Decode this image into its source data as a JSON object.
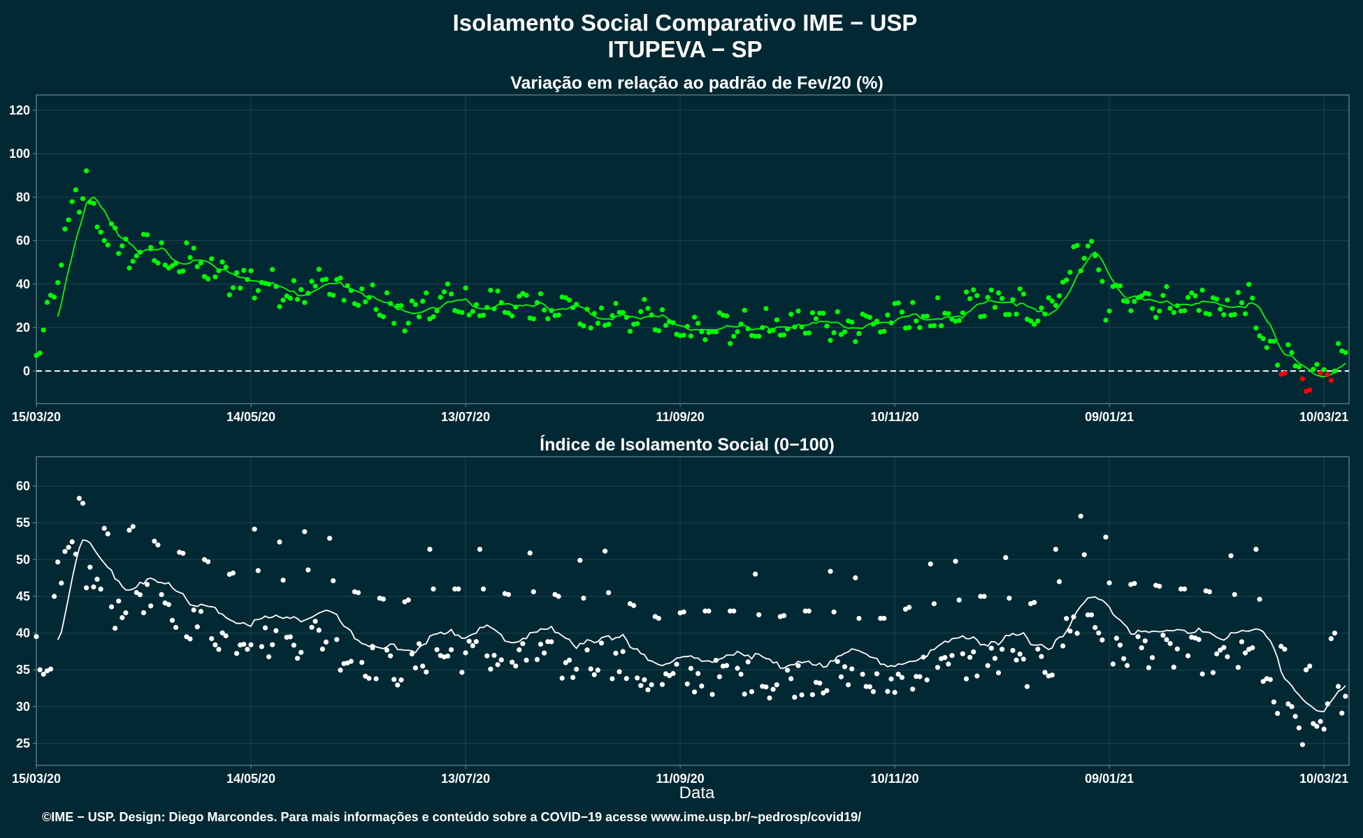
{
  "page": {
    "title_line1": "Isolamento Social Comparativo IME − USP",
    "title_line2": "ITUPEVA − SP",
    "footer": "©IME − USP. Design: Diego Marcondes. Para mais informações e conteúdo sobre a COVID−19 acesse www.ime.usp.br/~pedrosp/covid19/"
  },
  "colors": {
    "background": "#022833",
    "panel_border": "#6f8790",
    "grid": "#1c4452",
    "positive_points": "#00ff00",
    "negative_points": "#ff0000",
    "top_line": "#00ff00",
    "bottom_points": "#ffffff",
    "bottom_line": "#ffffff"
  },
  "chart_data": [
    {
      "id": "variation",
      "type": "scatter",
      "title": "Variação em relação ao padrão de Fev/20 (%)",
      "xlabel": "",
      "ylabel": "",
      "x_range": [
        "2020-03-15",
        "2021-03-17"
      ],
      "ylim": [
        -15,
        127
      ],
      "yticks": [
        0,
        20,
        40,
        60,
        80,
        100,
        120
      ],
      "xticks": [
        {
          "date": "2020-03-15",
          "label": "15/03/20"
        },
        {
          "date": "2020-05-14",
          "label": "14/05/20"
        },
        {
          "date": "2020-07-13",
          "label": "13/07/20"
        },
        {
          "date": "2020-09-11",
          "label": "11/09/20"
        },
        {
          "date": "2020-11-10",
          "label": "10/11/20"
        },
        {
          "date": "2021-01-09",
          "label": "09/01/21"
        },
        {
          "date": "2021-03-10",
          "label": "10/03/21"
        }
      ],
      "reference_line": 0,
      "grid": true,
      "keypoints": [
        [
          "2020-03-15",
          5
        ],
        [
          "2020-03-17",
          17
        ],
        [
          "2020-03-20",
          40
        ],
        [
          "2020-03-23",
          60
        ],
        [
          "2020-03-26",
          80
        ],
        [
          "2020-03-29",
          88
        ],
        [
          "2020-04-01",
          70
        ],
        [
          "2020-04-04",
          64
        ],
        [
          "2020-04-08",
          58
        ],
        [
          "2020-04-12",
          56
        ],
        [
          "2020-04-16",
          58
        ],
        [
          "2020-04-22",
          51
        ],
        [
          "2020-04-28",
          53
        ],
        [
          "2020-05-04",
          46
        ],
        [
          "2020-05-10",
          44
        ],
        [
          "2020-05-16",
          43
        ],
        [
          "2020-05-24",
          38
        ],
        [
          "2020-06-01",
          43
        ],
        [
          "2020-06-08",
          40
        ],
        [
          "2020-06-16",
          34
        ],
        [
          "2020-06-24",
          28
        ],
        [
          "2020-07-01",
          28
        ],
        [
          "2020-07-08",
          35
        ],
        [
          "2020-07-15",
          31
        ],
        [
          "2020-07-24",
          33
        ],
        [
          "2020-08-01",
          30
        ],
        [
          "2020-08-09",
          32
        ],
        [
          "2020-08-17",
          25
        ],
        [
          "2020-08-25",
          29
        ],
        [
          "2020-09-02",
          26
        ],
        [
          "2020-09-10",
          22
        ],
        [
          "2020-09-18",
          24
        ],
        [
          "2020-09-26",
          22
        ],
        [
          "2020-10-05",
          22
        ],
        [
          "2020-10-13",
          23
        ],
        [
          "2020-10-21",
          24
        ],
        [
          "2020-10-29",
          23
        ],
        [
          "2020-11-06",
          24
        ],
        [
          "2020-11-14",
          26
        ],
        [
          "2020-11-22",
          27
        ],
        [
          "2020-11-30",
          30
        ],
        [
          "2020-12-08",
          32
        ],
        [
          "2020-12-16",
          32
        ],
        [
          "2020-12-22",
          23
        ],
        [
          "2020-12-27",
          45
        ],
        [
          "2021-01-03",
          60
        ],
        [
          "2021-01-08",
          33
        ],
        [
          "2021-01-16",
          38
        ],
        [
          "2021-01-24",
          33
        ],
        [
          "2021-02-01",
          34
        ],
        [
          "2021-02-09",
          31
        ],
        [
          "2021-02-17",
          33
        ],
        [
          "2021-02-22",
          15
        ],
        [
          "2021-02-25",
          4
        ],
        [
          "2021-03-01",
          6
        ],
        [
          "2021-03-04",
          -4
        ],
        [
          "2021-03-07",
          -2
        ],
        [
          "2021-03-10",
          4
        ],
        [
          "2021-03-13",
          6
        ],
        [
          "2021-03-16",
          11
        ]
      ],
      "point_color_rule": "green when value >= 0, red when value < 0",
      "smoothing_window_days": 7
    },
    {
      "id": "index",
      "type": "scatter",
      "title": "Índice de Isolamento Social (0−100)",
      "xlabel": "Data",
      "ylabel": "",
      "x_range": [
        "2020-03-15",
        "2021-03-17"
      ],
      "ylim": [
        22,
        64
      ],
      "yticks": [
        25,
        30,
        35,
        40,
        45,
        50,
        55,
        60
      ],
      "xticks": [
        {
          "date": "2020-03-15",
          "label": "15/03/20"
        },
        {
          "date": "2020-05-14",
          "label": "14/05/20"
        },
        {
          "date": "2020-07-13",
          "label": "13/07/20"
        },
        {
          "date": "2020-09-11",
          "label": "11/09/20"
        },
        {
          "date": "2020-11-10",
          "label": "10/11/20"
        },
        {
          "date": "2021-01-09",
          "label": "09/01/21"
        },
        {
          "date": "2021-03-10",
          "label": "10/03/21"
        }
      ],
      "grid": true,
      "keypoints": [
        [
          "2020-03-15",
          42
        ],
        [
          "2020-03-17",
          32
        ],
        [
          "2020-03-20",
          36
        ],
        [
          "2020-03-23",
          50
        ],
        [
          "2020-03-26",
          50
        ],
        [
          "2020-03-29",
          48
        ],
        [
          "2020-04-02",
          46
        ],
        [
          "2020-04-06",
          43
        ],
        [
          "2020-04-12",
          46
        ],
        [
          "2020-04-18",
          43
        ],
        [
          "2020-04-24",
          42
        ],
        [
          "2020-05-01",
          41
        ],
        [
          "2020-05-08",
          39
        ],
        [
          "2020-05-14",
          40
        ],
        [
          "2020-05-22",
          38
        ],
        [
          "2020-06-01",
          40
        ],
        [
          "2020-06-09",
          37
        ],
        [
          "2020-06-17",
          36
        ],
        [
          "2020-06-25",
          35
        ],
        [
          "2020-07-03",
          37
        ],
        [
          "2020-07-11",
          37
        ],
        [
          "2020-07-19",
          37
        ],
        [
          "2020-07-27",
          36
        ],
        [
          "2020-08-04",
          37
        ],
        [
          "2020-08-12",
          35
        ],
        [
          "2020-08-20",
          37
        ],
        [
          "2020-08-28",
          35
        ],
        [
          "2020-09-05",
          33
        ],
        [
          "2020-09-13",
          34
        ],
        [
          "2020-09-21",
          34
        ],
        [
          "2020-09-29",
          34
        ],
        [
          "2020-10-07",
          33
        ],
        [
          "2020-10-15",
          34
        ],
        [
          "2020-10-23",
          34
        ],
        [
          "2020-10-31",
          33
        ],
        [
          "2020-11-08",
          33
        ],
        [
          "2020-11-16",
          35
        ],
        [
          "2020-11-24",
          35
        ],
        [
          "2020-12-02",
          36
        ],
        [
          "2020-12-10",
          36
        ],
        [
          "2020-12-18",
          35
        ],
        [
          "2020-12-24",
          36
        ],
        [
          "2020-12-29",
          41
        ],
        [
          "2021-01-04",
          42
        ],
        [
          "2021-01-10",
          37
        ],
        [
          "2021-01-18",
          38
        ],
        [
          "2021-01-26",
          37
        ],
        [
          "2021-02-03",
          37
        ],
        [
          "2021-02-11",
          36
        ],
        [
          "2021-02-19",
          37
        ],
        [
          "2021-02-24",
          30
        ],
        [
          "2021-03-01",
          28
        ],
        [
          "2021-03-05",
          26
        ],
        [
          "2021-03-09",
          28
        ],
        [
          "2021-03-13",
          31
        ],
        [
          "2021-03-16",
          30
        ]
      ],
      "smoothing_window_days": 7
    }
  ]
}
